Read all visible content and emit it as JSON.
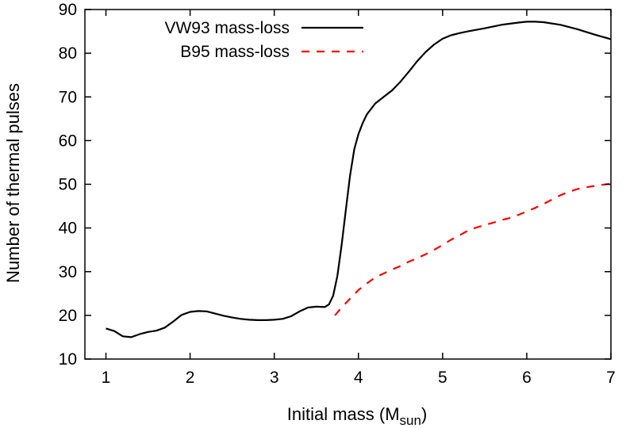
{
  "chart_data": {
    "type": "line",
    "title": "",
    "xlabel": "Initial mass (M",
    "xlabel_sub": "sun",
    "xlabel_close": ")",
    "ylabel": "Number of thermal pulses",
    "xlim": [
      0.75,
      7
    ],
    "ylim": [
      10,
      90
    ],
    "x_ticks": [
      1,
      2,
      3,
      4,
      5,
      6,
      7
    ],
    "y_ticks": [
      10,
      20,
      30,
      40,
      50,
      60,
      70,
      80,
      90
    ],
    "grid": false,
    "legend_position": "top-left",
    "series": [
      {
        "name": "VW93 mass-loss",
        "color": "#000000",
        "dash": "solid",
        "x": [
          1.0,
          1.1,
          1.2,
          1.3,
          1.4,
          1.5,
          1.6,
          1.7,
          1.8,
          1.9,
          2.0,
          2.1,
          2.2,
          2.3,
          2.4,
          2.5,
          2.6,
          2.7,
          2.8,
          2.9,
          3.0,
          3.1,
          3.2,
          3.3,
          3.4,
          3.5,
          3.6,
          3.65,
          3.7,
          3.75,
          3.8,
          3.85,
          3.9,
          3.95,
          4.0,
          4.05,
          4.1,
          4.2,
          4.3,
          4.4,
          4.5,
          4.6,
          4.7,
          4.8,
          4.9,
          5.0,
          5.1,
          5.2,
          5.3,
          5.5,
          5.7,
          5.9,
          6.0,
          6.1,
          6.2,
          6.4,
          6.6,
          6.8,
          7.0
        ],
        "y": [
          17.0,
          16.4,
          15.2,
          15.0,
          15.7,
          16.2,
          16.5,
          17.2,
          18.6,
          20.1,
          20.8,
          21.0,
          20.9,
          20.4,
          19.9,
          19.5,
          19.2,
          19.0,
          18.9,
          18.9,
          19.0,
          19.2,
          19.8,
          20.9,
          21.8,
          22.0,
          21.9,
          22.5,
          24.5,
          29.0,
          36.0,
          44.0,
          52.0,
          58.0,
          61.5,
          64.0,
          66.0,
          68.5,
          70.0,
          71.5,
          73.5,
          75.8,
          78.2,
          80.3,
          82.0,
          83.3,
          84.1,
          84.6,
          85.0,
          85.7,
          86.5,
          87.0,
          87.2,
          87.2,
          87.1,
          86.5,
          85.5,
          84.3,
          83.2
        ]
      },
      {
        "name": "B95 mass-loss",
        "color": "#ff0000",
        "dash": "dashed",
        "x": [
          3.72,
          3.8,
          3.9,
          4.0,
          4.1,
          4.2,
          4.3,
          4.4,
          4.5,
          4.6,
          4.7,
          4.8,
          4.9,
          5.0,
          5.1,
          5.2,
          5.3,
          5.4,
          5.5,
          5.6,
          5.7,
          5.8,
          5.9,
          6.0,
          6.1,
          6.2,
          6.3,
          6.4,
          6.5,
          6.6,
          6.7,
          6.8,
          6.9,
          7.0
        ],
        "y": [
          20.0,
          21.8,
          23.8,
          25.8,
          27.3,
          28.7,
          29.6,
          30.5,
          31.3,
          32.3,
          33.1,
          34.0,
          35.0,
          36.1,
          37.3,
          38.3,
          39.4,
          40.1,
          40.7,
          41.2,
          41.8,
          42.3,
          43.0,
          43.8,
          44.6,
          45.5,
          46.5,
          47.5,
          48.3,
          48.9,
          49.3,
          49.6,
          49.9,
          50.1
        ]
      }
    ]
  }
}
